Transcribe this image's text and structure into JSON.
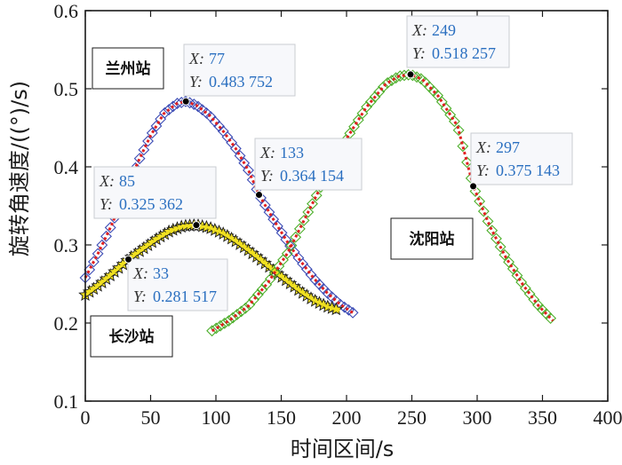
{
  "chart_data": {
    "type": "line",
    "title": "",
    "xlabel": "时间区间/s",
    "ylabel": "旋转角速度/((°)/s)",
    "xlim": [
      0,
      400
    ],
    "ylim": [
      0.1,
      0.6
    ],
    "xticks": [
      "0",
      "50",
      "100",
      "150",
      "200",
      "250",
      "300",
      "350",
      "400"
    ],
    "yticks": [
      "0.1",
      "0.2",
      "0.3",
      "0.4",
      "0.5",
      "0.6"
    ],
    "grid": false,
    "series": [
      {
        "name": "兰州站",
        "color": "#3b4bb5",
        "marker": "diamond",
        "curve": "#e02020",
        "points": [
          [
            0,
            0.258
          ],
          [
            10,
            0.29
          ],
          [
            20,
            0.325
          ],
          [
            30,
            0.365
          ],
          [
            40,
            0.405
          ],
          [
            50,
            0.44
          ],
          [
            60,
            0.468
          ],
          [
            70,
            0.481
          ],
          [
            77,
            0.483752
          ],
          [
            85,
            0.479
          ],
          [
            95,
            0.466
          ],
          [
            105,
            0.447
          ],
          [
            115,
            0.424
          ],
          [
            125,
            0.395
          ],
          [
            133,
            0.364154
          ],
          [
            145,
            0.33
          ],
          [
            155,
            0.303
          ],
          [
            165,
            0.279
          ],
          [
            175,
            0.257
          ],
          [
            185,
            0.239
          ],
          [
            195,
            0.224
          ],
          [
            205,
            0.213
          ]
        ]
      },
      {
        "name": "长沙站",
        "color": "#1a1a1a",
        "marker": "star",
        "curve": "#f0e020",
        "points": [
          [
            0,
            0.236
          ],
          [
            10,
            0.248
          ],
          [
            20,
            0.262
          ],
          [
            33,
            0.281517
          ],
          [
            45,
            0.296
          ],
          [
            55,
            0.308
          ],
          [
            65,
            0.318
          ],
          [
            75,
            0.324
          ],
          [
            85,
            0.325362
          ],
          [
            95,
            0.322
          ],
          [
            105,
            0.315
          ],
          [
            115,
            0.305
          ],
          [
            125,
            0.293
          ],
          [
            135,
            0.28
          ],
          [
            145,
            0.266
          ],
          [
            155,
            0.253
          ],
          [
            165,
            0.24
          ],
          [
            175,
            0.229
          ],
          [
            185,
            0.221
          ],
          [
            195,
            0.216
          ]
        ]
      },
      {
        "name": "沈阳站",
        "color": "#4caf2a",
        "marker": "diamond",
        "curve": "#e02020",
        "points": [
          [
            97,
            0.19
          ],
          [
            110,
            0.203
          ],
          [
            125,
            0.222
          ],
          [
            140,
            0.252
          ],
          [
            155,
            0.29
          ],
          [
            170,
            0.34
          ],
          [
            185,
            0.39
          ],
          [
            200,
            0.436
          ],
          [
            215,
            0.476
          ],
          [
            230,
            0.506
          ],
          [
            240,
            0.516
          ],
          [
            249,
            0.518257
          ],
          [
            258,
            0.512
          ],
          [
            270,
            0.491
          ],
          [
            285,
            0.452
          ],
          [
            297,
            0.375143
          ],
          [
            310,
            0.323
          ],
          [
            322,
            0.284
          ],
          [
            335,
            0.249
          ],
          [
            347,
            0.222
          ],
          [
            358,
            0.203
          ]
        ]
      }
    ],
    "stations": [
      {
        "label": "兰州站"
      },
      {
        "label": "长沙站"
      },
      {
        "label": "沈阳站"
      }
    ],
    "annotations": [
      {
        "x": 77,
        "y": 0.483752,
        "x_text": "77",
        "y_text": "0.483 752"
      },
      {
        "x": 85,
        "y": 0.325362,
        "x_text": "85",
        "y_text": "0.325 362"
      },
      {
        "x": 33,
        "y": 0.281517,
        "x_text": "33",
        "y_text": "0.281 517"
      },
      {
        "x": 133,
        "y": 0.364154,
        "x_text": "133",
        "y_text": "0.364 154"
      },
      {
        "x": 249,
        "y": 0.518257,
        "x_text": "249",
        "y_text": "0.518 257"
      },
      {
        "x": 297,
        "y": 0.375143,
        "x_text": "297",
        "y_text": "0.375 143"
      }
    ],
    "tip_keys": {
      "x": "X",
      "y": "Y"
    }
  }
}
